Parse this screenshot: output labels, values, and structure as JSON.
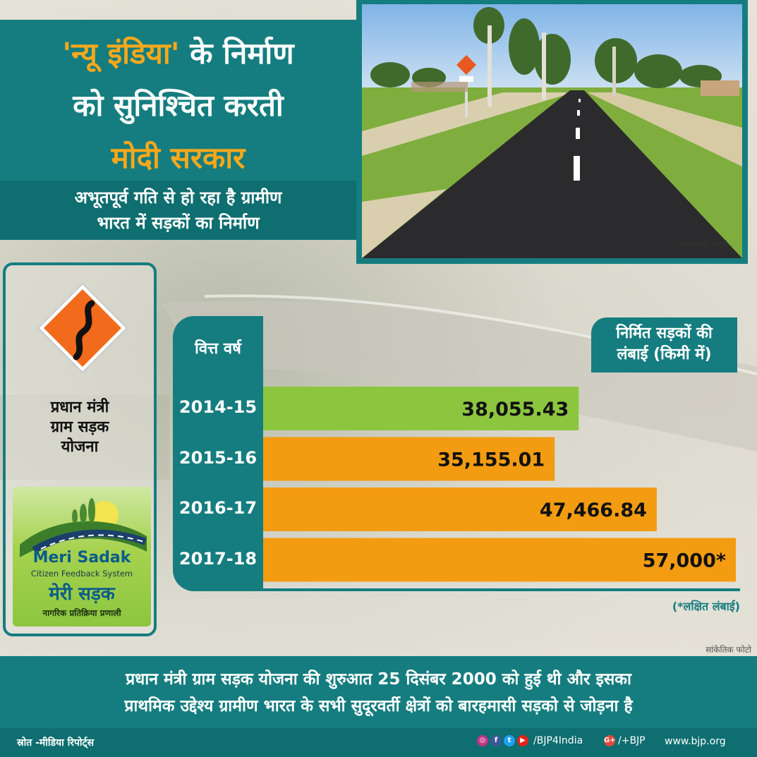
{
  "headline": {
    "line1_highlight": "'न्यू इंडिया'",
    "line1_rest": " के निर्माण",
    "line2": "को सुनिश्चित करती",
    "line3": "मोदी सरकार"
  },
  "subhead": {
    "line1": "अभूतपूर्व गति से हो रहा है ग्रामीण",
    "line2": "भारत में सड़कों का निर्माण"
  },
  "photo": {
    "caption": "सांकेतिक फोटो"
  },
  "left_card": {
    "icon": "winding-road-sign-icon",
    "title_line1": "प्रधान मंत्री",
    "title_line2": "ग्राम सड़क",
    "title_line3": "योजना",
    "logo": {
      "name_en": "Meri Sadak",
      "tagline_en": "Citizen Feedback System",
      "name_hi": "मेरी सड़क",
      "tagline_hi": "नागरिक प्रतिक्रिया प्रणाली"
    }
  },
  "chart_data": {
    "type": "bar",
    "orientation": "horizontal",
    "category_header": "वित्त  वर्ष",
    "value_header_line1": "निर्मित सड़कों की",
    "value_header_line2": "लंबाई (किमी में)",
    "categories": [
      "2014-15",
      "2015-16",
      "2016-17",
      "2017-18"
    ],
    "values": [
      38055.43,
      35155.01,
      47466.84,
      57000
    ],
    "value_labels": [
      "38,055.43",
      "35,155.01",
      "47,466.84",
      "57,000*"
    ],
    "bar_colors": [
      "#8cc63f",
      "#f39c12",
      "#f39c12",
      "#f39c12"
    ],
    "xlim": [
      0,
      57000
    ],
    "footnote": "(*लक्षित लंबाई)"
  },
  "background_caption": "सांकेतिक फोटो",
  "bottom_text": {
    "line1": "प्रधान मंत्री ग्राम सड़क योजना की शुरुआत 25 दिसंबर 2000 को हुई थी और इसका",
    "line2": "प्राथमिक उद्देश्य ग्रामीण भारत के सभी सुदूरवर्ती क्षेत्रों को बारहमासी सड़को से जोड़ना है"
  },
  "footer": {
    "source": "स्रोत -मीडिया रिपोर्ट्स",
    "social_handle": "/BJP4India",
    "gplus_handle": "/+BJP",
    "website": "www.bjp.org",
    "colors": {
      "instagram": "#c13584",
      "facebook": "#3b5998",
      "twitter": "#1da1f2",
      "youtube": "#e62117",
      "gplus": "#dd4b39"
    }
  }
}
